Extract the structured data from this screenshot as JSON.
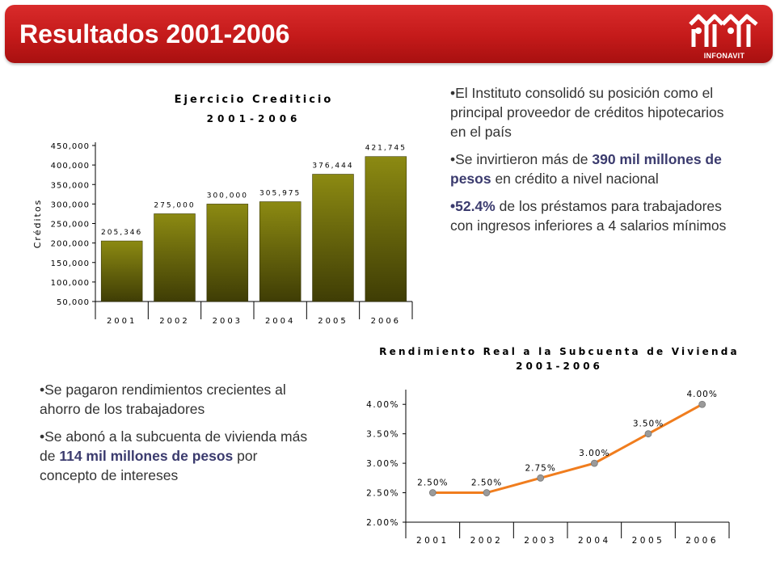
{
  "header": {
    "title": "Resultados 2001-2006",
    "logo_text": "INFONAVIT"
  },
  "bullets_top": [
    {
      "parts": [
        {
          "t": "•El Instituto consolidó su posición como el principal proveedor de créditos hipotecarios en el país",
          "b": false
        }
      ]
    },
    {
      "parts": [
        {
          "t": "•Se invirtieron más de ",
          "b": false
        },
        {
          "t": "390 mil millones de pesos",
          "b": true
        },
        {
          "t": " en crédito a nivel nacional",
          "b": false
        }
      ]
    },
    {
      "parts": [
        {
          "t": "•52.4%",
          "b": true
        },
        {
          "t": " de los préstamos para trabajadores con ingresos inferiores a 4 salarios mínimos",
          "b": false
        }
      ]
    }
  ],
  "bullets_bottom": [
    {
      "parts": [
        {
          "t": "•Se pagaron rendimientos crecientes al ahorro de los trabajadores",
          "b": false
        }
      ]
    },
    {
      "parts": [
        {
          "t": "•Se abonó a la subcuenta de vivienda más de ",
          "b": false
        },
        {
          "t": "114 mil millones de pesos",
          "b": true
        },
        {
          "t": " por concepto de intereses",
          "b": false
        }
      ]
    }
  ],
  "chart_data": [
    {
      "type": "bar",
      "title": "Ejercicio Crediticio",
      "subtitle": "2001-2006",
      "xlabel": "",
      "ylabel": "Créditos",
      "categories": [
        "2001",
        "2002",
        "2003",
        "2004",
        "2005",
        "2006"
      ],
      "values": [
        205346,
        275000,
        300000,
        305975,
        376444,
        421745
      ],
      "data_labels": [
        "205,346",
        "275,000",
        "300,000",
        "305,975",
        "376,444",
        "421,745"
      ],
      "y_ticks": [
        50000,
        100000,
        150000,
        200000,
        250000,
        300000,
        350000,
        400000,
        450000
      ],
      "y_tick_labels": [
        "50,000",
        "100,000",
        "150,000",
        "200,000",
        "250,000",
        "300,000",
        "350,000",
        "400,000",
        "450,000"
      ],
      "ylim": [
        50000,
        450000
      ],
      "grid": false,
      "colors": {
        "bar_top": "#8c8a12",
        "bar_bottom": "#3f3d05"
      }
    },
    {
      "type": "line",
      "title": "Rendimiento Real a la Subcuenta de Vivienda",
      "subtitle": "2001-2006",
      "xlabel": "",
      "ylabel": "",
      "categories": [
        "2001",
        "2002",
        "2003",
        "2004",
        "2005",
        "2006"
      ],
      "values": [
        2.5,
        2.5,
        2.75,
        3.0,
        3.5,
        4.0
      ],
      "data_labels": [
        "2.50%",
        "2.50%",
        "2.75%",
        "3.00%",
        "3.50%",
        "4.00%"
      ],
      "y_ticks": [
        2.0,
        2.5,
        3.0,
        3.5,
        4.0
      ],
      "y_tick_labels": [
        "2.00%",
        "2.50%",
        "3.00%",
        "3.50%",
        "4.00%"
      ],
      "ylim": [
        2.0,
        4.25
      ],
      "grid": false,
      "colors": {
        "line": "#f07d1e",
        "marker": "#9a9a9a"
      }
    }
  ]
}
